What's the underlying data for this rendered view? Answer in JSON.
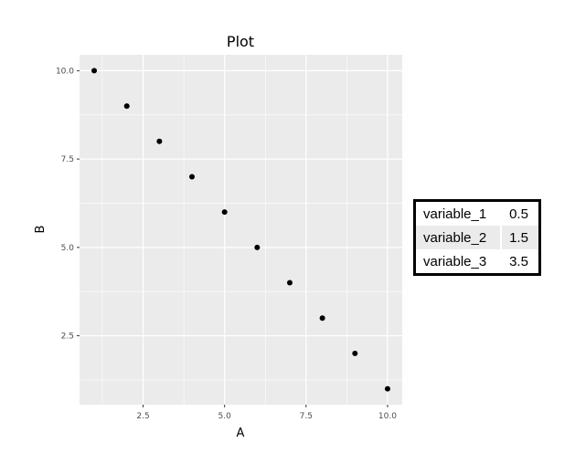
{
  "chart_data": {
    "type": "scatter",
    "title": "Plot",
    "xlabel": "A",
    "ylabel": "B",
    "xlim": [
      0.55,
      10.45
    ],
    "ylim": [
      0.55,
      10.45
    ],
    "x_ticks": [
      2.5,
      5.0,
      7.5,
      10.0
    ],
    "x_tick_labels": [
      "2.5",
      "5.0",
      "7.5",
      "10.0"
    ],
    "y_ticks": [
      2.5,
      5.0,
      7.5,
      10.0
    ],
    "y_tick_labels": [
      "2.5",
      "5.0",
      "7.5",
      "10.0"
    ],
    "grid": true,
    "background": "#ebebeb",
    "point_color": "#000000",
    "points": [
      {
        "x": 1,
        "y": 10
      },
      {
        "x": 2,
        "y": 9
      },
      {
        "x": 3,
        "y": 8
      },
      {
        "x": 4,
        "y": 7
      },
      {
        "x": 5,
        "y": 6
      },
      {
        "x": 6,
        "y": 5
      },
      {
        "x": 7,
        "y": 4
      },
      {
        "x": 8,
        "y": 3
      },
      {
        "x": 9,
        "y": 2
      },
      {
        "x": 10,
        "y": 1
      }
    ]
  },
  "table": {
    "rows": [
      {
        "name": "variable_1",
        "value": "0.5"
      },
      {
        "name": "variable_2",
        "value": "1.5"
      },
      {
        "name": "variable_3",
        "value": "3.5"
      }
    ]
  }
}
